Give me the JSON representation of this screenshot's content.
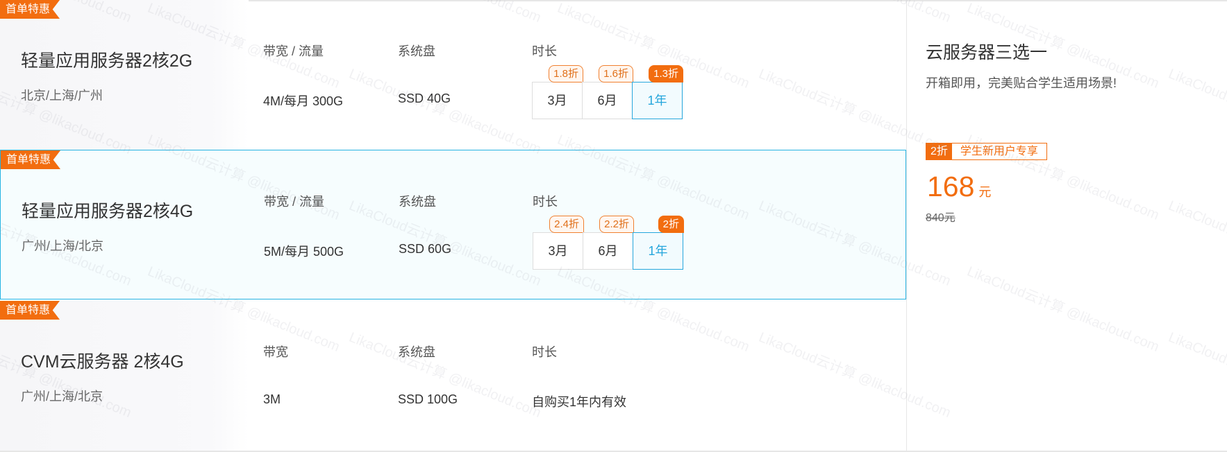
{
  "products": [
    {
      "tag": "首单特惠",
      "title": "轻量应用服务器2核2G",
      "location": "北京/上海/广州",
      "headers": [
        "带宽 / 流量",
        "系统盘",
        "时长"
      ],
      "bandwidth": "4M/每月 300G",
      "disk": "SSD 40G",
      "durations": [
        {
          "label": "3月",
          "discount": "1.8折"
        },
        {
          "label": "6月",
          "discount": "1.6折"
        },
        {
          "label": "1年",
          "discount": "1.3折",
          "selected": true
        }
      ]
    },
    {
      "tag": "首单特惠",
      "title": "轻量应用服务器2核4G",
      "location": "广州/上海/北京",
      "headers": [
        "带宽 / 流量",
        "系统盘",
        "时长"
      ],
      "bandwidth": "5M/每月 500G",
      "disk": "SSD 60G",
      "durations": [
        {
          "label": "3月",
          "discount": "2.4折"
        },
        {
          "label": "6月",
          "discount": "2.2折"
        },
        {
          "label": "1年",
          "discount": "2折",
          "selected": true
        }
      ]
    },
    {
      "tag": "首单特惠",
      "title": "CVM云服务器 2核4G",
      "location": "广州/上海/北京",
      "headers": [
        "带宽",
        "系统盘",
        "时长"
      ],
      "bandwidth": "3M",
      "disk": "SSD 100G",
      "duration_text": "自购买1年内有效"
    }
  ],
  "side": {
    "title": "云服务器三选一",
    "subtitle": "开箱即用，完美贴合学生适用场景!",
    "discount": "2折",
    "promo": "学生新用户专享",
    "price": "168",
    "unit": "元",
    "original_price": "840元"
  },
  "watermark": "LikaCloud云计算 @likacloud.com",
  "colors": {
    "accent": "#f26d0f",
    "selected": "#25a6dc"
  }
}
